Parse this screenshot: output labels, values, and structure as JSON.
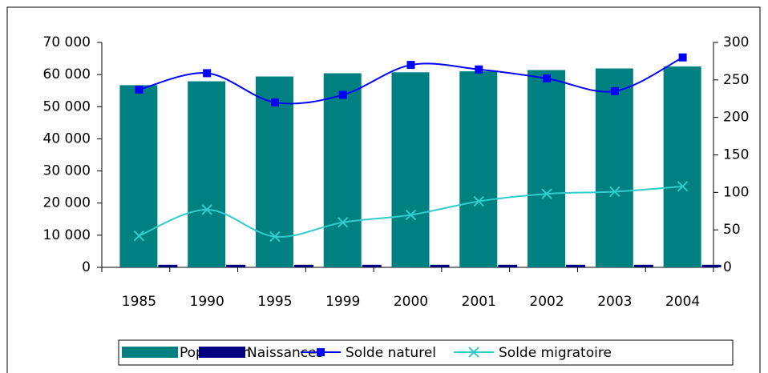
{
  "chart_data": {
    "type": "bar",
    "categories": [
      "1985",
      "1990",
      "1995",
      "1999",
      "2000",
      "2001",
      "2002",
      "2003",
      "2004"
    ],
    "series": [
      {
        "name": "Population",
        "color": "#008080",
        "type": "bar",
        "values": [
          56700,
          57900,
          59400,
          60400,
          60700,
          61000,
          61400,
          61900,
          62500
        ]
      },
      {
        "name": "Naissances",
        "color": "#000080",
        "type": "bar",
        "values": [
          800,
          800,
          800,
          800,
          800,
          800,
          800,
          800,
          800
        ]
      },
      {
        "name": "Solde naturel",
        "color": "#0000ff",
        "type": "line",
        "axis": "y2",
        "marker": "square",
        "values": [
          237,
          259,
          220,
          230,
          270,
          264,
          252,
          235,
          280
        ]
      },
      {
        "name": "Solde migratoire",
        "color": "#33cccc",
        "type": "line",
        "axis": "y2",
        "marker": "x",
        "values": [
          42,
          77,
          41,
          60,
          70,
          88,
          98,
          101,
          108
        ]
      }
    ],
    "ylim": [
      0,
      70000
    ],
    "yticks": [
      {
        "value": 0,
        "label": "0"
      },
      {
        "value": 10000,
        "label": "10 000"
      },
      {
        "value": 20000,
        "label": "20 000"
      },
      {
        "value": 30000,
        "label": "30 000"
      },
      {
        "value": 40000,
        "label": "40 000"
      },
      {
        "value": 50000,
        "label": "50 000"
      },
      {
        "value": 60000,
        "label": "60 000"
      },
      {
        "value": 70000,
        "label": "70 000"
      }
    ],
    "y2lim": [
      0,
      300
    ],
    "y2ticks": [
      0,
      50,
      100,
      150,
      200,
      250,
      300
    ],
    "legend": "bottom"
  }
}
